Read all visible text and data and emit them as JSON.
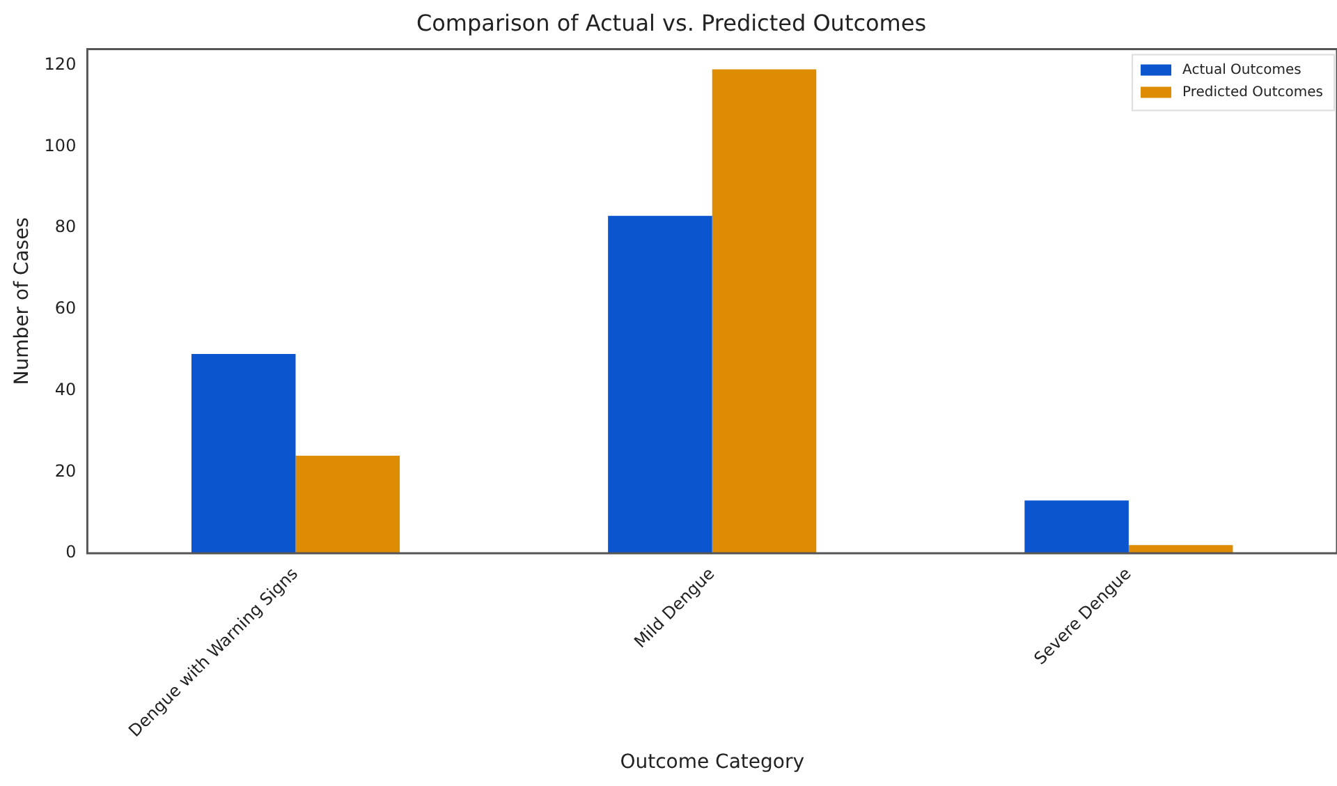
{
  "chart_data": {
    "type": "bar",
    "title": "Comparison of Actual vs. Predicted Outcomes",
    "xlabel": "Outcome Category",
    "ylabel": "Number of Cases",
    "categories": [
      "Dengue with Warning Signs",
      "Mild Dengue",
      "Severe Dengue"
    ],
    "series": [
      {
        "name": "Actual Outcomes",
        "color": "#0b55cf",
        "values": [
          49,
          83,
          13
        ]
      },
      {
        "name": "Predicted Outcomes",
        "color": "#de8c04",
        "values": [
          24,
          119,
          2
        ]
      }
    ],
    "ylim": [
      0,
      124
    ],
    "yticks": [
      0,
      20,
      40,
      60,
      80,
      100,
      120
    ],
    "grid": false,
    "legend": "top right"
  }
}
